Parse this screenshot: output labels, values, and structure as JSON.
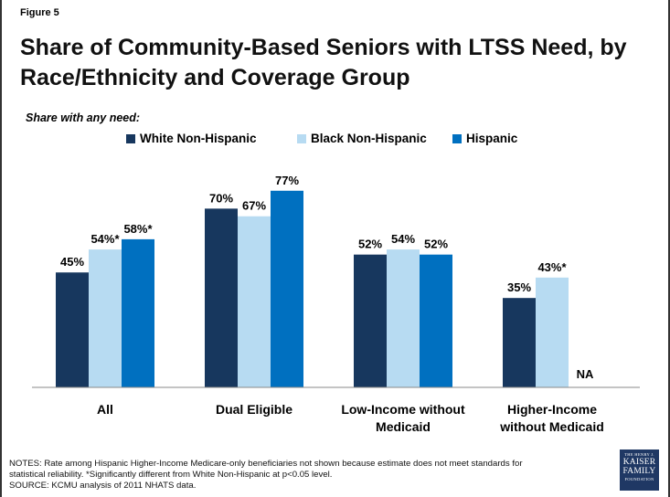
{
  "figure_label": "Figure 5",
  "title": "Share of Community-Based Seniors with LTSS Need, by Race/Ethnicity and Coverage Group",
  "subtitle": "Share with any need:",
  "chart_data": {
    "type": "bar",
    "title": "Share of Community-Based Seniors with LTSS Need, by Race/Ethnicity and Coverage Group",
    "subtitle": "Share with any need:",
    "categories": [
      "All",
      "Dual Eligible",
      "Low-Income without Medicaid",
      "Higher-Income without Medicaid"
    ],
    "category_lines": [
      [
        "All"
      ],
      [
        "Dual Eligible"
      ],
      [
        "Low-Income without",
        "Medicaid"
      ],
      [
        "Higher-Income",
        "without Medicaid"
      ]
    ],
    "series": [
      {
        "name": "White Non-Hispanic",
        "color": "#17375e",
        "values": [
          45,
          70,
          52,
          35
        ],
        "labels": [
          "45%",
          "70%",
          "52%",
          "35%"
        ]
      },
      {
        "name": "Black Non-Hispanic",
        "color": "#b7dbf2",
        "values": [
          54,
          67,
          54,
          43
        ],
        "labels": [
          "54%*",
          "67%",
          "54%",
          "43%*"
        ]
      },
      {
        "name": "Hispanic",
        "color": "#0070c0",
        "values": [
          58,
          77,
          52,
          null
        ],
        "labels": [
          "58%*",
          "77%",
          "52%",
          "NA"
        ]
      }
    ],
    "ylim": [
      0,
      100
    ],
    "grid": false,
    "legend": "top-center",
    "xlabel": "",
    "ylabel": ""
  },
  "notes": [
    "NOTES: Rate among Hispanic Higher-Income Medicare-only beneficiaries not shown because estimate does not meet standards for",
    "statistical reliability. *Significantly different from White Non-Hispanic at p<0.05 level.",
    "SOURCE: KCMU analysis of 2011 NHATS data."
  ],
  "logo": {
    "line1": "THE HENRY J.",
    "line2": "KAISER",
    "line3": "FAMILY",
    "line4": "FOUNDATION"
  }
}
